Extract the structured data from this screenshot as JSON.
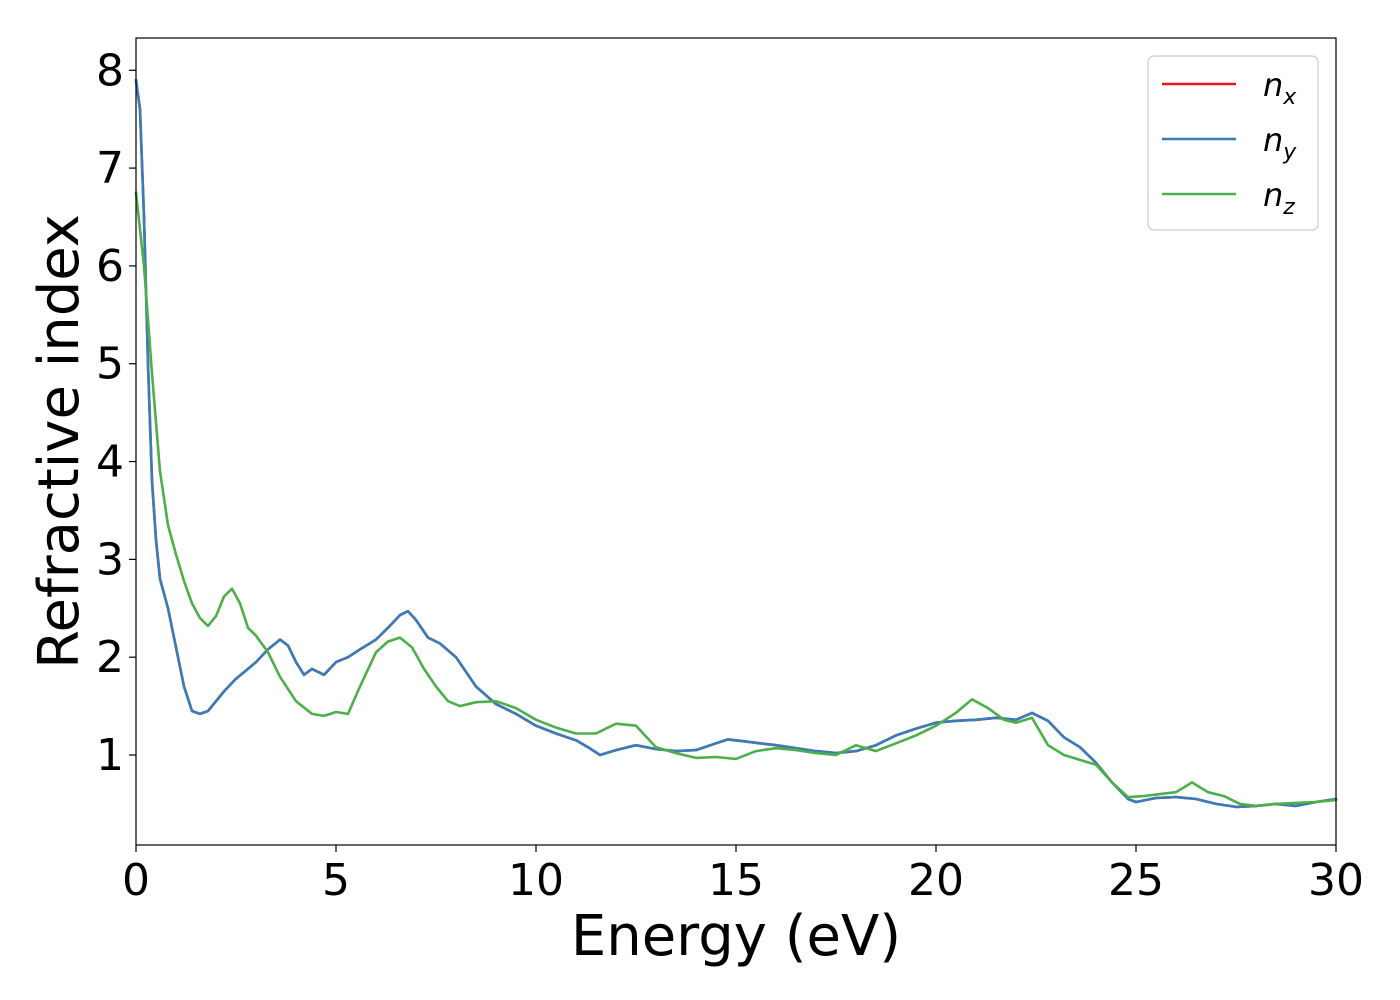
{
  "chart_data": {
    "type": "line",
    "title": "",
    "xlabel": "Energy (eV)",
    "ylabel": "Refractive index",
    "xlim": [
      0,
      30
    ],
    "ylim": [
      0.08,
      8.33
    ],
    "xticks": [
      0,
      5,
      10,
      15,
      20,
      25,
      30
    ],
    "yticks": [
      1,
      2,
      3,
      4,
      5,
      6,
      7,
      8
    ],
    "grid": false,
    "legend_position": "top-right",
    "series": [
      {
        "name": "n",
        "subscript": "x",
        "color": "#e41a1c",
        "x": [
          0,
          0.1,
          0.2,
          0.3,
          0.4,
          0.5,
          0.6,
          0.8,
          1.0,
          1.2,
          1.4,
          1.6,
          1.8,
          2.0,
          2.2,
          2.5,
          2.8,
          3.0,
          3.3,
          3.6,
          3.8,
          4.0,
          4.2,
          4.4,
          4.7,
          5.0,
          5.3,
          5.6,
          6.0,
          6.3,
          6.6,
          6.8,
          7.0,
          7.3,
          7.6,
          8.0,
          8.5,
          9.0,
          9.5,
          10.0,
          10.5,
          11.0,
          11.3,
          11.6,
          12.0,
          12.5,
          13.0,
          13.5,
          14.0,
          14.5,
          14.8,
          15.2,
          15.6,
          16.0,
          16.5,
          17.0,
          17.5,
          18.0,
          18.5,
          19.0,
          19.5,
          20.0,
          20.5,
          21.0,
          21.5,
          22.0,
          22.4,
          22.8,
          23.2,
          23.6,
          24.0,
          24.4,
          24.8,
          25.0,
          25.5,
          26.0,
          26.5,
          27.0,
          27.5,
          28.0,
          28.5,
          29.0,
          29.5,
          30.0
        ],
        "y": [
          7.9,
          7.6,
          6.5,
          5.0,
          3.8,
          3.2,
          2.8,
          2.5,
          2.1,
          1.7,
          1.45,
          1.42,
          1.45,
          1.55,
          1.65,
          1.78,
          1.88,
          1.95,
          2.08,
          2.18,
          2.12,
          1.95,
          1.82,
          1.88,
          1.82,
          1.95,
          2.0,
          2.08,
          2.18,
          2.3,
          2.43,
          2.47,
          2.38,
          2.2,
          2.14,
          2.0,
          1.7,
          1.52,
          1.42,
          1.3,
          1.22,
          1.15,
          1.08,
          1.0,
          1.05,
          1.1,
          1.06,
          1.04,
          1.05,
          1.12,
          1.16,
          1.14,
          1.12,
          1.1,
          1.07,
          1.04,
          1.02,
          1.04,
          1.1,
          1.2,
          1.27,
          1.33,
          1.35,
          1.36,
          1.38,
          1.36,
          1.43,
          1.35,
          1.18,
          1.08,
          0.92,
          0.72,
          0.55,
          0.52,
          0.56,
          0.57,
          0.55,
          0.5,
          0.47,
          0.48,
          0.5,
          0.48,
          0.52,
          0.55
        ]
      },
      {
        "name": "n",
        "subscript": "y",
        "color": "#377eb8",
        "x": [
          0,
          0.1,
          0.2,
          0.3,
          0.4,
          0.5,
          0.6,
          0.8,
          1.0,
          1.2,
          1.4,
          1.6,
          1.8,
          2.0,
          2.2,
          2.5,
          2.8,
          3.0,
          3.3,
          3.6,
          3.8,
          4.0,
          4.2,
          4.4,
          4.7,
          5.0,
          5.3,
          5.6,
          6.0,
          6.3,
          6.6,
          6.8,
          7.0,
          7.3,
          7.6,
          8.0,
          8.5,
          9.0,
          9.5,
          10.0,
          10.5,
          11.0,
          11.3,
          11.6,
          12.0,
          12.5,
          13.0,
          13.5,
          14.0,
          14.5,
          14.8,
          15.2,
          15.6,
          16.0,
          16.5,
          17.0,
          17.5,
          18.0,
          18.5,
          19.0,
          19.5,
          20.0,
          20.5,
          21.0,
          21.5,
          22.0,
          22.4,
          22.8,
          23.2,
          23.6,
          24.0,
          24.4,
          24.8,
          25.0,
          25.5,
          26.0,
          26.5,
          27.0,
          27.5,
          28.0,
          28.5,
          29.0,
          29.5,
          30.0
        ],
        "y": [
          7.9,
          7.6,
          6.5,
          5.0,
          3.8,
          3.2,
          2.8,
          2.5,
          2.1,
          1.7,
          1.45,
          1.42,
          1.45,
          1.55,
          1.65,
          1.78,
          1.88,
          1.95,
          2.08,
          2.18,
          2.12,
          1.95,
          1.82,
          1.88,
          1.82,
          1.95,
          2.0,
          2.08,
          2.18,
          2.3,
          2.43,
          2.47,
          2.38,
          2.2,
          2.14,
          2.0,
          1.7,
          1.52,
          1.42,
          1.3,
          1.22,
          1.15,
          1.08,
          1.0,
          1.05,
          1.1,
          1.06,
          1.04,
          1.05,
          1.12,
          1.16,
          1.14,
          1.12,
          1.1,
          1.07,
          1.04,
          1.02,
          1.04,
          1.1,
          1.2,
          1.27,
          1.33,
          1.35,
          1.36,
          1.38,
          1.36,
          1.43,
          1.35,
          1.18,
          1.08,
          0.92,
          0.72,
          0.55,
          0.52,
          0.56,
          0.57,
          0.55,
          0.5,
          0.47,
          0.48,
          0.5,
          0.48,
          0.52,
          0.55
        ]
      },
      {
        "name": "n",
        "subscript": "z",
        "color": "#4daf4a",
        "x": [
          0,
          0.2,
          0.4,
          0.6,
          0.8,
          1.0,
          1.2,
          1.4,
          1.6,
          1.8,
          2.0,
          2.2,
          2.4,
          2.6,
          2.8,
          3.0,
          3.3,
          3.6,
          4.0,
          4.4,
          4.7,
          5.0,
          5.3,
          5.6,
          6.0,
          6.3,
          6.6,
          6.9,
          7.2,
          7.5,
          7.8,
          8.1,
          8.5,
          9.0,
          9.5,
          10.0,
          10.5,
          11.0,
          11.5,
          12.0,
          12.5,
          13.0,
          13.5,
          14.0,
          14.5,
          15.0,
          15.5,
          16.0,
          16.5,
          17.0,
          17.5,
          18.0,
          18.5,
          19.0,
          19.5,
          20.0,
          20.5,
          20.9,
          21.3,
          21.7,
          22.0,
          22.4,
          22.8,
          23.2,
          23.6,
          24.0,
          24.4,
          24.8,
          25.2,
          25.6,
          26.0,
          26.4,
          26.8,
          27.2,
          27.6,
          28.0,
          28.5,
          29.0,
          29.5,
          30.0
        ],
        "y": [
          6.75,
          6.0,
          4.9,
          3.9,
          3.35,
          3.05,
          2.78,
          2.55,
          2.4,
          2.32,
          2.42,
          2.62,
          2.7,
          2.55,
          2.3,
          2.22,
          2.05,
          1.8,
          1.55,
          1.42,
          1.4,
          1.44,
          1.42,
          1.7,
          2.05,
          2.16,
          2.2,
          2.1,
          1.88,
          1.7,
          1.55,
          1.5,
          1.54,
          1.55,
          1.48,
          1.36,
          1.28,
          1.22,
          1.22,
          1.32,
          1.3,
          1.08,
          1.02,
          0.97,
          0.98,
          0.96,
          1.04,
          1.07,
          1.05,
          1.02,
          1.0,
          1.1,
          1.04,
          1.12,
          1.2,
          1.3,
          1.43,
          1.57,
          1.48,
          1.36,
          1.33,
          1.38,
          1.1,
          1.0,
          0.95,
          0.9,
          0.72,
          0.57,
          0.58,
          0.6,
          0.62,
          0.72,
          0.62,
          0.58,
          0.5,
          0.48,
          0.5,
          0.51,
          0.52,
          0.54
        ]
      }
    ]
  }
}
